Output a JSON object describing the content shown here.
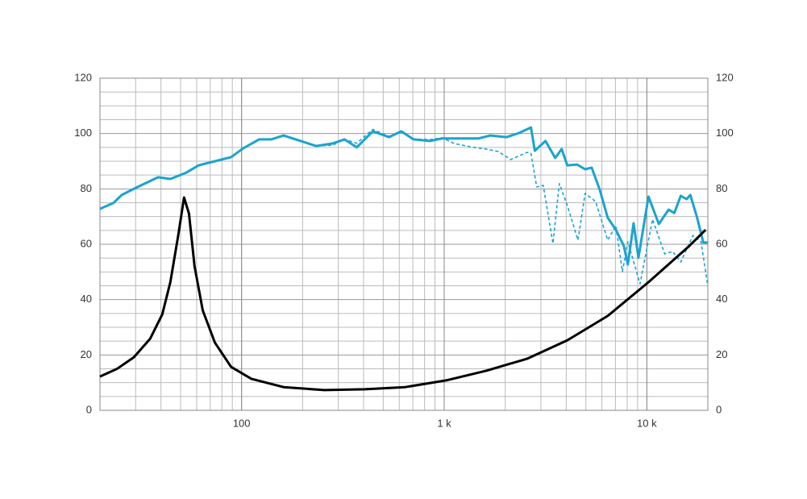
{
  "chart_data": {
    "type": "line",
    "xlim": [
      20,
      20000
    ],
    "xscale": "log",
    "xticks": [
      {
        "value": 100,
        "label": "100"
      },
      {
        "value": 1000,
        "label": "1 k"
      },
      {
        "value": 10000,
        "label": "10 k"
      }
    ],
    "ylim": [
      0,
      120
    ],
    "yticks": [
      0,
      20,
      40,
      60,
      80,
      100,
      120
    ],
    "y2lim": [
      0,
      120
    ],
    "y2ticks": [
      0,
      20,
      40,
      60,
      80,
      100,
      120
    ],
    "grid": true,
    "series": [
      {
        "color": "#1ba3d0",
        "dashed": false,
        "x": [
          20,
          23.3,
          25.6,
          30.7,
          38.7,
          44.5,
          53.4,
          61.4,
          73.8,
          88.7,
          101.9,
          122,
          140,
          161,
          185,
          233,
          281,
          322,
          370,
          444,
          534,
          614,
          705,
          850,
          975,
          1170,
          1470,
          1690,
          2030,
          2340,
          2680,
          2800,
          3160,
          3530,
          3800,
          4050,
          4520,
          4960,
          5340,
          5850,
          6410,
          7030,
          7700,
          8060,
          8600,
          9090,
          10190,
          11460,
          12800,
          13660,
          14700,
          15700,
          16400,
          17700,
          19000,
          20000
        ],
        "values": [
          72.8,
          74.9,
          77.8,
          80.7,
          84.2,
          83.6,
          85.9,
          88.5,
          90,
          91.5,
          94.7,
          97.9,
          97.9,
          99.3,
          97.9,
          95.5,
          96.4,
          97.9,
          95,
          100.8,
          98.7,
          100.8,
          97.9,
          97.3,
          98.2,
          98.2,
          98.2,
          99.3,
          98.7,
          100.2,
          102.2,
          93.8,
          97.3,
          91.2,
          94.4,
          88.5,
          88.8,
          87.1,
          87.7,
          79.8,
          69.6,
          65.2,
          59.4,
          52.7,
          67.6,
          55.1,
          77.2,
          67.3,
          72.5,
          71.3,
          77.5,
          76.3,
          77.8,
          69.6,
          60.6,
          60.6
        ]
      },
      {
        "color": "#1ba3d0",
        "dashed": true,
        "x": [
          20,
          23.3,
          25.6,
          30.7,
          38.7,
          44.5,
          53.4,
          61.4,
          73.8,
          88.7,
          101.9,
          122,
          140,
          161,
          185,
          233,
          281,
          322,
          370,
          444,
          534,
          614,
          705,
          850,
          975,
          1120,
          1340,
          1610,
          1850,
          2130,
          2560,
          2680,
          2860,
          3080,
          3440,
          3700,
          4050,
          4570,
          4960,
          5590,
          6410,
          7030,
          7570,
          8060,
          9260,
          10670,
          12250,
          13420,
          14700,
          16900,
          18500,
          20000
        ],
        "values": [
          72.8,
          74.9,
          77.8,
          80.7,
          84.2,
          83.6,
          85.9,
          88.5,
          90,
          91.5,
          94.7,
          97.9,
          97.9,
          99.3,
          97.9,
          95.5,
          95.8,
          97.9,
          96.5,
          101.5,
          99,
          100.5,
          98,
          97.8,
          98.5,
          96.4,
          95.2,
          94.4,
          93.5,
          90.6,
          93.2,
          92.9,
          80.7,
          81.3,
          60.3,
          81.9,
          74,
          61.5,
          78.4,
          75.4,
          61.5,
          66.7,
          50.1,
          60.9,
          45.7,
          69,
          56.5,
          57.4,
          53.6,
          63.2,
          60.9,
          44.9
        ]
      },
      {
        "color": "#000000",
        "dashed": false,
        "x": [
          20,
          24.4,
          29.4,
          35.4,
          40.6,
          44.5,
          48.8,
          52,
          55,
          58.6,
          64.3,
          73.8,
          88.7,
          111.7,
          161,
          256,
          405,
          642,
          1020,
          1610,
          2560,
          4050,
          6410,
          10190,
          16200,
          19500
        ],
        "values": [
          12.2,
          15.1,
          19.2,
          25.9,
          34.7,
          46.3,
          63.8,
          76.9,
          71.1,
          52.1,
          36.1,
          24.5,
          15.7,
          11.4,
          8.4,
          7.3,
          7.6,
          8.4,
          10.8,
          14.3,
          18.6,
          25.3,
          34.1,
          46.3,
          59.4,
          65.2
        ]
      }
    ]
  }
}
